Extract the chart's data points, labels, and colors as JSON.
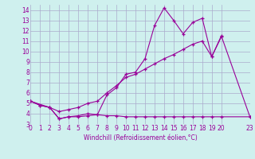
{
  "bg_color": "#cff0ee",
  "grid_color": "#aaaacc",
  "line_color": "#990099",
  "xlabel": "Windchill (Refroidissement éolien,°C)",
  "ylim": [
    3,
    14.5
  ],
  "xlim": [
    0,
    23
  ],
  "yticks": [
    3,
    4,
    5,
    6,
    7,
    8,
    9,
    10,
    11,
    12,
    13,
    14
  ],
  "xticks": [
    0,
    1,
    2,
    3,
    4,
    5,
    6,
    7,
    8,
    9,
    10,
    11,
    12,
    13,
    14,
    15,
    16,
    17,
    18,
    19,
    20,
    23
  ],
  "l1_x": [
    0,
    1,
    2,
    3,
    4,
    5,
    6,
    7,
    8,
    9,
    10,
    11,
    12,
    13,
    14,
    15,
    16,
    17,
    18,
    19,
    20,
    23
  ],
  "l1_y": [
    5.2,
    4.8,
    4.6,
    3.5,
    3.7,
    3.8,
    4.0,
    3.9,
    5.8,
    6.5,
    7.8,
    8.0,
    9.3,
    12.5,
    14.2,
    13.0,
    11.7,
    12.8,
    13.2,
    9.5,
    11.5,
    3.7
  ],
  "l2_x": [
    0,
    1,
    2,
    3,
    4,
    5,
    6,
    7,
    8,
    9,
    10,
    11,
    12,
    13,
    14,
    15,
    16,
    17,
    18,
    19,
    20
  ],
  "l2_y": [
    5.2,
    4.8,
    4.6,
    4.2,
    4.4,
    4.6,
    5.0,
    5.2,
    6.0,
    6.7,
    7.5,
    7.8,
    8.3,
    8.8,
    9.3,
    9.7,
    10.2,
    10.7,
    11.0,
    9.5,
    11.4
  ],
  "l3_x": [
    0,
    2,
    3,
    4,
    5,
    6,
    7,
    8,
    9,
    10,
    11,
    12,
    13,
    14,
    15,
    16,
    17,
    18,
    19,
    20,
    23
  ],
  "l3_y": [
    5.2,
    4.6,
    3.5,
    3.7,
    3.7,
    3.8,
    3.9,
    3.8,
    3.8,
    3.7,
    3.7,
    3.7,
    3.7,
    3.7,
    3.7,
    3.7,
    3.7,
    3.7,
    3.7,
    3.7,
    3.7
  ]
}
